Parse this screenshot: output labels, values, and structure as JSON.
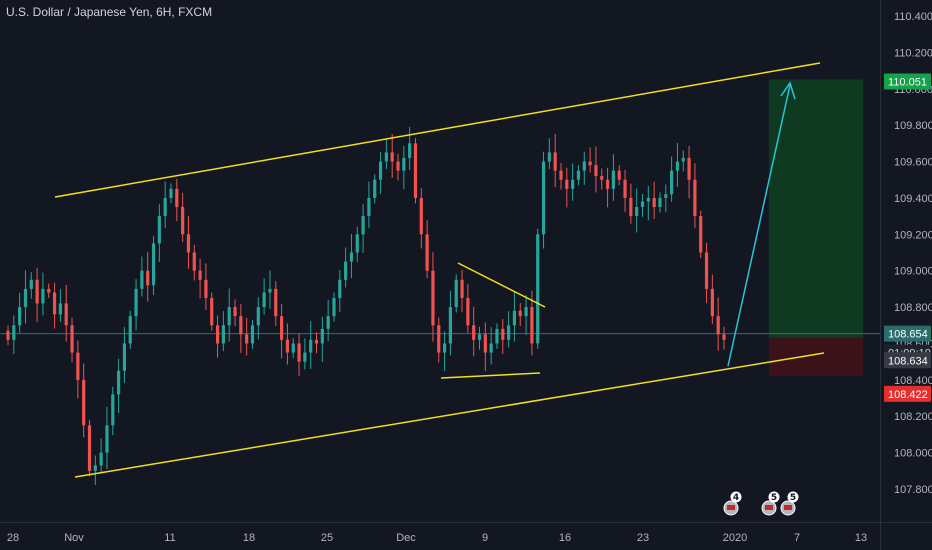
{
  "header": {
    "title": "U.S. Dollar / Japanese Yen, 6H, FXCM"
  },
  "colors": {
    "background": "#131722",
    "up": "#26a69a",
    "down": "#ef5350",
    "trendline": "#f4e01a",
    "arrow": "#26c6da",
    "target_zone": "#0e3a22",
    "stop_zone": "#3b1218",
    "last_price_line": "#2a8a8a"
  },
  "chart_data": {
    "type": "candlestick",
    "symbol": "USDJPY",
    "timeframe": "6H",
    "ylim": [
      107.62,
      110.46
    ],
    "y_ticks": [
      "110.400",
      "110.200",
      "110.000",
      "109.800",
      "109.600",
      "109.400",
      "109.200",
      "109.000",
      "108.800",
      "108.600",
      "108.400",
      "108.200",
      "108.000",
      "107.800"
    ],
    "x_ticks": [
      "28",
      "Nov",
      "11",
      "18",
      "25",
      "Dec",
      "9",
      "16",
      "23",
      "2020",
      "7",
      "13"
    ],
    "price_tags": {
      "target": {
        "label": "110.051",
        "value": 110.051
      },
      "current": {
        "label": "108.654",
        "value": 108.654
      },
      "countdown": {
        "label": "01:09:10"
      },
      "close": {
        "label": "108.634",
        "value": 108.634
      },
      "stop": {
        "label": "108.422",
        "value": 108.422
      }
    },
    "events": [
      {
        "label": "4"
      },
      {
        "label": "5"
      },
      {
        "label": "5"
      }
    ],
    "closes": [
      108.62,
      108.7,
      108.8,
      108.9,
      108.95,
      108.82,
      108.9,
      108.88,
      108.76,
      108.82,
      108.7,
      108.55,
      108.4,
      108.15,
      107.9,
      107.93,
      108.0,
      108.15,
      108.32,
      108.45,
      108.6,
      108.75,
      108.9,
      109.0,
      108.92,
      109.15,
      109.3,
      109.4,
      109.45,
      109.35,
      109.2,
      109.1,
      109.0,
      108.95,
      108.85,
      108.7,
      108.6,
      108.7,
      108.8,
      108.75,
      108.65,
      108.6,
      108.7,
      108.8,
      108.88,
      108.9,
      108.75,
      108.62,
      108.55,
      108.6,
      108.5,
      108.55,
      108.62,
      108.6,
      108.68,
      108.75,
      108.85,
      108.95,
      109.05,
      109.1,
      109.2,
      109.3,
      109.4,
      109.5,
      109.6,
      109.65,
      109.6,
      109.55,
      109.62,
      109.7,
      109.4,
      109.2,
      109.0,
      108.7,
      108.55,
      108.6,
      108.8,
      108.95,
      108.85,
      108.7,
      108.62,
      108.65,
      108.55,
      108.6,
      108.68,
      108.62,
      108.7,
      108.78,
      108.75,
      108.8,
      108.6,
      109.2,
      109.6,
      109.65,
      109.55,
      109.5,
      109.45,
      109.5,
      109.55,
      109.6,
      109.58,
      109.52,
      109.5,
      109.45,
      109.55,
      109.5,
      109.4,
      109.3,
      109.35,
      109.38,
      109.4,
      109.35,
      109.4,
      109.42,
      109.55,
      109.6,
      109.62,
      109.5,
      109.3,
      109.1,
      108.9,
      108.75,
      108.65,
      108.62
    ]
  }
}
